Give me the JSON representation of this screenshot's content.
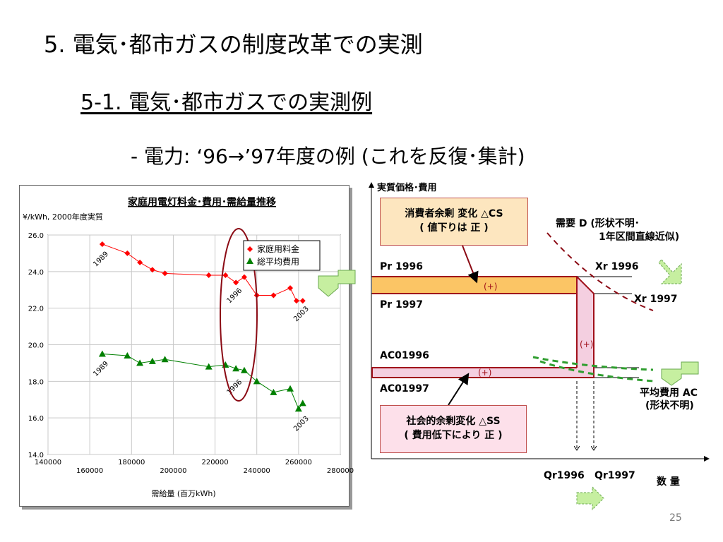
{
  "heading1": "5. 電気･都市ガスの制度改革での実測",
  "heading2": "5-1. 電気･都市ガスでの実測例",
  "heading3": "- 電力:  ‘96→’97年度の例 (これを反復･集計)",
  "chart_data": {
    "type": "line",
    "title": "家庭用電灯料金･費用･需給量推移",
    "ylabel": "¥/kWh, 2000年度実質",
    "xlabel": "需給量 (百万kWh)",
    "xlim": [
      140000,
      280000
    ],
    "ylim": [
      14.0,
      26.0
    ],
    "x_ticks": [
      "140000",
      "160000",
      "180000",
      "200000",
      "220000",
      "240000",
      "260000",
      "280000"
    ],
    "y_ticks": [
      "14.0",
      "16.0",
      "18.0",
      "20.0",
      "22.0",
      "24.0",
      "26.0"
    ],
    "grid": true,
    "legend": "top-right",
    "series": [
      {
        "name": "家庭用料金",
        "color": "#ff0000",
        "marker": "diamond",
        "x": [
          166000,
          178000,
          184000,
          190000,
          196000,
          217000,
          225000,
          230000,
          234000,
          240000,
          248000,
          256000,
          259000,
          262000
        ],
        "y": [
          25.5,
          25.0,
          24.5,
          24.1,
          23.9,
          23.8,
          23.8,
          23.4,
          23.7,
          22.7,
          22.7,
          23.1,
          22.4,
          22.4
        ]
      },
      {
        "name": "総平均費用",
        "color": "#008000",
        "marker": "triangle",
        "x": [
          166000,
          178000,
          184000,
          190000,
          196000,
          217000,
          225000,
          230000,
          234000,
          240000,
          248000,
          256000,
          260000,
          262000
        ],
        "y": [
          19.5,
          19.4,
          19.0,
          19.1,
          19.2,
          18.8,
          18.9,
          18.7,
          18.6,
          18.0,
          17.4,
          17.6,
          16.5,
          16.8
        ]
      }
    ],
    "annotations": [
      {
        "text": "1989",
        "x": 166000,
        "y": 24.6
      },
      {
        "text": "1996",
        "x": 230000,
        "y": 22.6
      },
      {
        "text": "2003",
        "x": 262000,
        "y": 21.6
      },
      {
        "text": "1989",
        "x": 166000,
        "y": 18.6
      },
      {
        "text": "1996",
        "x": 230000,
        "y": 17.6
      },
      {
        "text": "2003",
        "x": 262000,
        "y": 15.6
      }
    ]
  },
  "diagram": {
    "y_axis_label": "実質価格･費用",
    "x_axis_label": "数  量",
    "cs_box_lines": [
      "消費者余剰 変化 △CS",
      "( 値下りは 正 )"
    ],
    "ss_box_lines": [
      "社会的余剰変化 △SS",
      "( 費用低下により 正 )"
    ],
    "demand_label_lines": [
      "需要 D (形状不明･",
      "1年区間直線近似)"
    ],
    "ac_label_lines": [
      "平均費用 AC",
      "(形状不明)"
    ],
    "pr1996": "Pr 1996",
    "pr1997": "Pr 1997",
    "ac1996": "AC01996",
    "ac1997": "AC01997",
    "xr1996": "Xr 1996",
    "xr1997": "Xr 1997",
    "qr1996": "Qr1996",
    "qr1997": "Qr1997",
    "plus": "(+)"
  },
  "colors": {
    "red_series": "#ff0000",
    "green_series": "#008000",
    "cs_fill": "#fbc565",
    "ss_fill": "#f4cfe0",
    "outline_red": "#a0101a",
    "arrow_green": "#92d050",
    "demand_dashed": "#8b0a14"
  },
  "page_number": "25"
}
